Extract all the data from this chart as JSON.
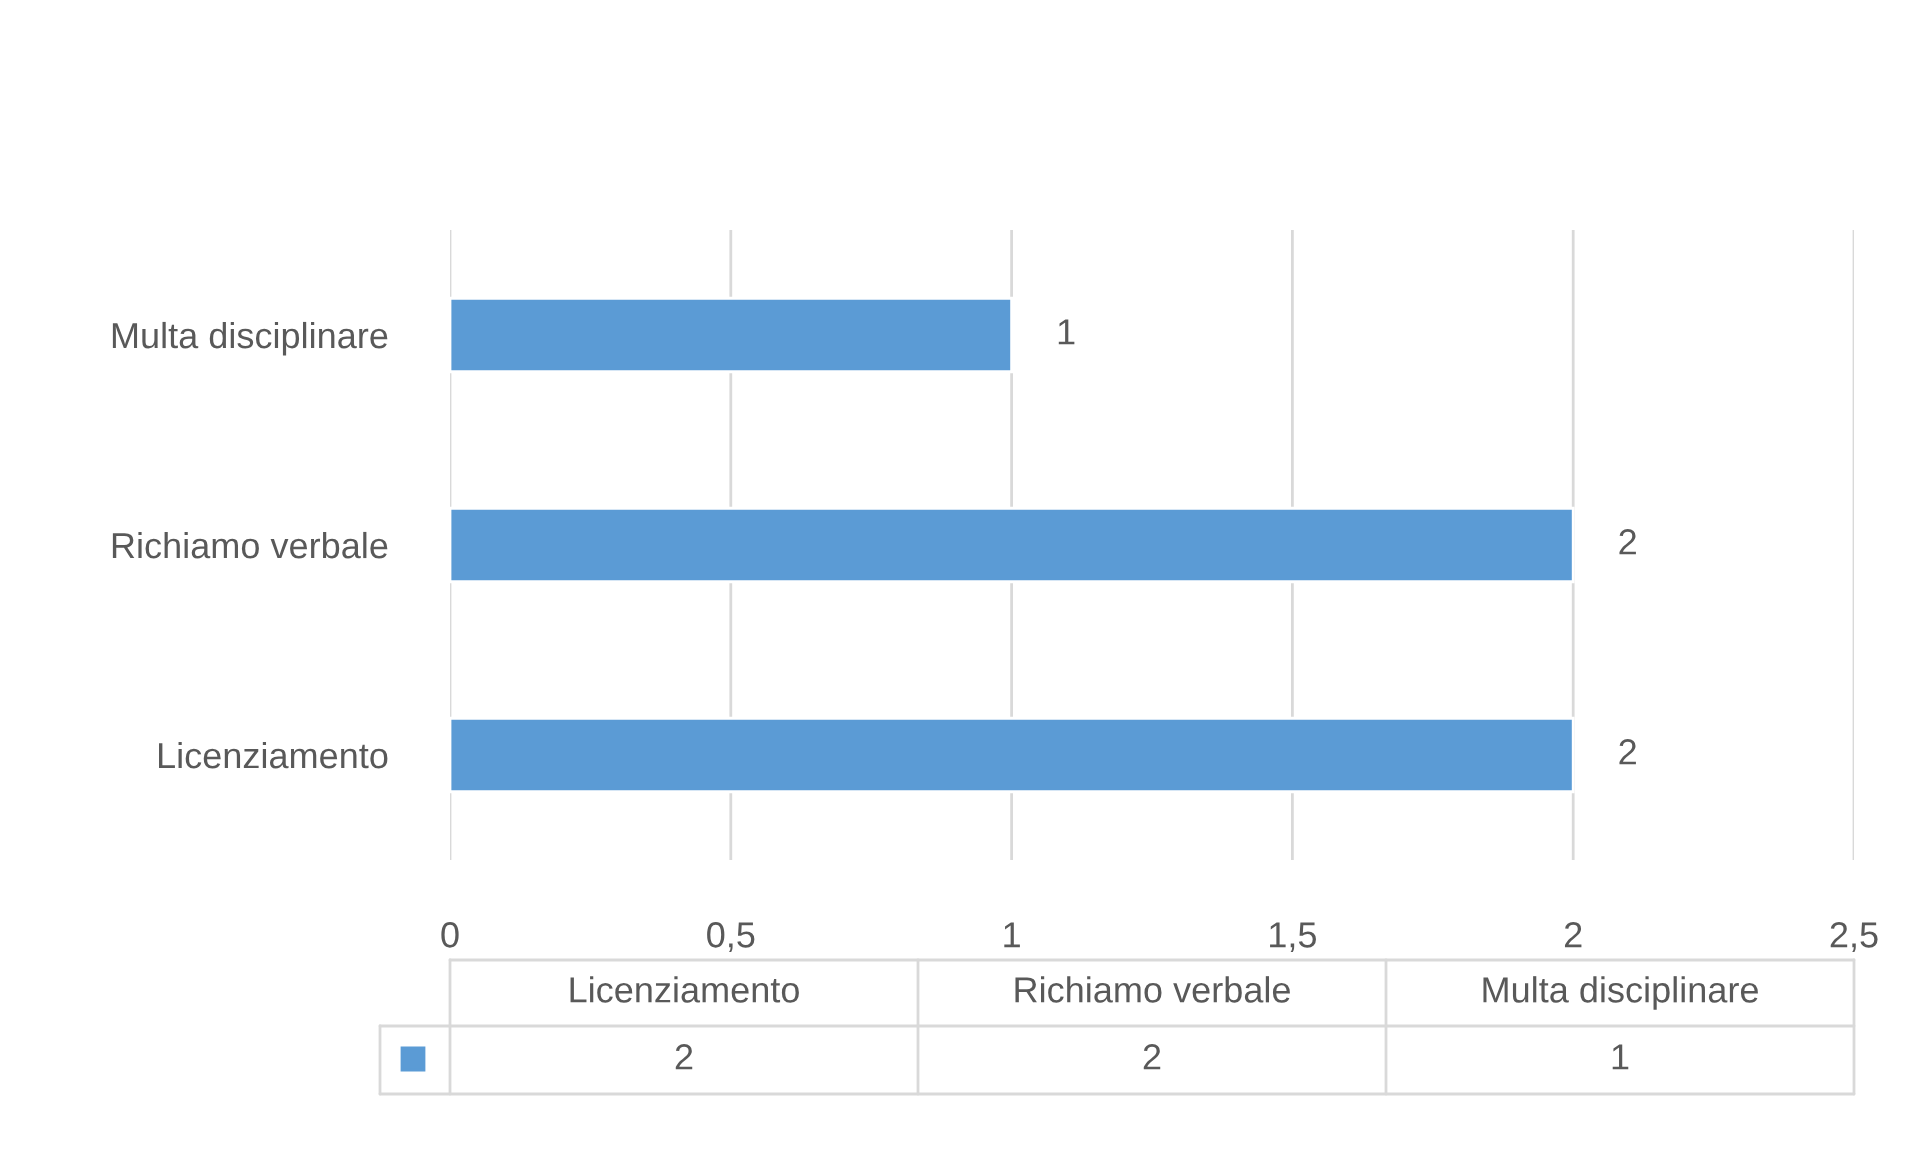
{
  "chart_data": {
    "type": "bar",
    "orientation": "horizontal",
    "categories": [
      "Multa disciplinare",
      "Richiamo verbale",
      "Licenziamento"
    ],
    "series": [
      {
        "color": "#5b9bd5",
        "values": [
          1,
          2,
          2
        ],
        "value_labels": [
          "1",
          "2",
          "2"
        ]
      }
    ],
    "xlim": [
      0,
      2.5
    ],
    "xticks": [
      0,
      {
        "value": 0.5,
        "label": "0,5"
      },
      1,
      {
        "value": 1.5,
        "label": "1,5"
      },
      2,
      {
        "value": 2.5,
        "label": "2,5"
      }
    ],
    "grid": "x"
  }
}
